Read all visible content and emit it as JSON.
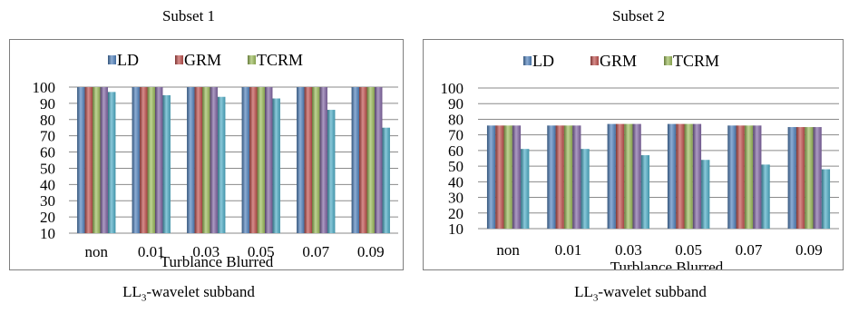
{
  "panels": [
    {
      "title": "Subset 1",
      "caption_main": "LL",
      "caption_sub": "3",
      "caption_rest": "-wavelet subband"
    },
    {
      "title": "Subset 2",
      "caption_main": "LL",
      "caption_sub": "3",
      "caption_rest": "-wavelet subband"
    }
  ],
  "chart_data": [
    {
      "type": "bar",
      "title": "",
      "xlabel": "Turblance Blurred",
      "ylabel": "",
      "ylim": [
        10,
        100
      ],
      "yticks": [
        10,
        20,
        30,
        40,
        50,
        60,
        70,
        80,
        90,
        100
      ],
      "grid": true,
      "legend_position": "top",
      "categories": [
        "non",
        "0.01",
        "0.03",
        "0.05",
        "0.07",
        "0.09"
      ],
      "series": [
        {
          "name": "LD",
          "values": [
            100,
            100,
            100,
            100,
            100,
            100
          ],
          "color": "#4F81BD"
        },
        {
          "name": "GRM",
          "values": [
            100,
            100,
            100,
            100,
            100,
            100
          ],
          "color": "#C0504D"
        },
        {
          "name": "TCRM",
          "values": [
            100,
            100,
            100,
            100,
            100,
            100
          ],
          "color": "#9BBB59"
        },
        {
          "values": [
            100,
            100,
            100,
            100,
            100,
            100
          ],
          "color": "#8064A2"
        },
        {
          "values": [
            97,
            95,
            94,
            93,
            86,
            75
          ],
          "color": "#4BACC6"
        }
      ]
    },
    {
      "type": "bar",
      "title": "",
      "xlabel": "Turblance Blurred",
      "ylabel": "",
      "ylim": [
        10,
        100
      ],
      "yticks": [
        10,
        20,
        30,
        40,
        50,
        60,
        70,
        80,
        90,
        100
      ],
      "grid": true,
      "legend_position": "top",
      "categories": [
        "non",
        "0.01",
        "0.03",
        "0.05",
        "0.07",
        "0.09"
      ],
      "series": [
        {
          "name": "LD",
          "values": [
            76,
            76,
            77,
            77,
            76,
            75
          ],
          "color": "#4F81BD"
        },
        {
          "name": "GRM",
          "values": [
            76,
            76,
            77,
            77,
            76,
            75
          ],
          "color": "#C0504D"
        },
        {
          "name": "TCRM",
          "values": [
            76,
            76,
            77,
            77,
            76,
            75
          ],
          "color": "#9BBB59"
        },
        {
          "values": [
            76,
            76,
            77,
            77,
            76,
            75
          ],
          "color": "#8064A2"
        },
        {
          "values": [
            61,
            61,
            57,
            54,
            51,
            48
          ],
          "color": "#4BACC6"
        }
      ]
    }
  ]
}
